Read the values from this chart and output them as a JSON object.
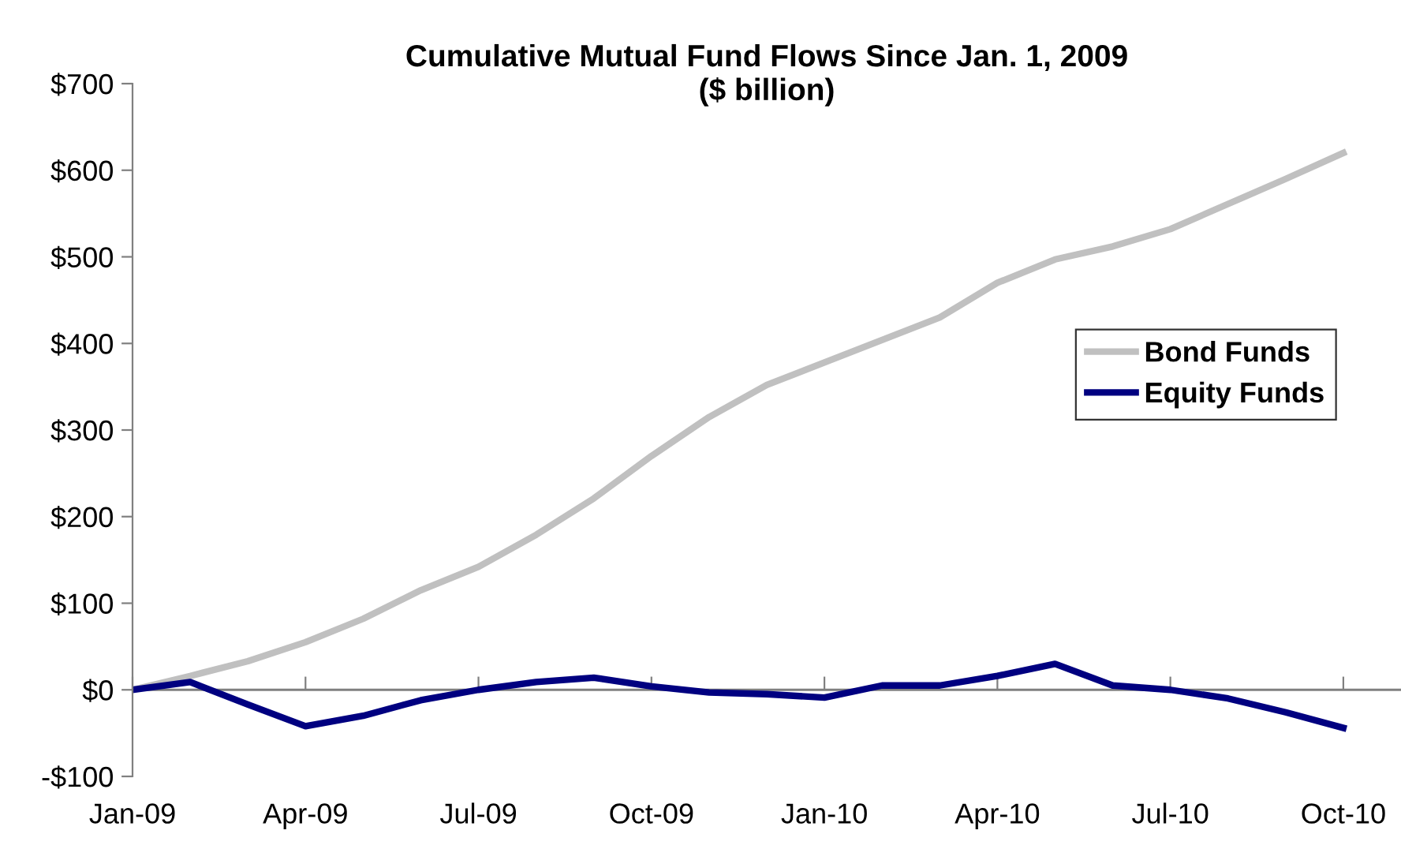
{
  "chart_data": {
    "type": "line",
    "title": "Cumulative Mutual Fund Flows Since Jan. 1, 2009\n($ billion)",
    "categories": [
      "Jan-09",
      null,
      null,
      "Apr-09",
      null,
      null,
      "Jul-09",
      null,
      null,
      "Oct-09",
      null,
      null,
      "Jan-10",
      null,
      null,
      "Apr-10",
      null,
      null,
      "Jul-10",
      null,
      null,
      "Oct-10"
    ],
    "series": [
      {
        "name": "Bond Funds",
        "color": "#c0c0c0",
        "values": [
          0,
          16,
          33,
          55,
          82,
          115,
          142,
          179,
          221,
          270,
          315,
          352,
          378,
          404,
          430,
          470,
          497,
          512,
          532,
          561,
          590,
          620
        ]
      },
      {
        "name": "Equity Funds",
        "color": "#000080",
        "values": [
          0,
          9,
          -17,
          -42,
          -30,
          -12,
          0,
          9,
          14,
          4,
          -3,
          -5,
          -9,
          5,
          5,
          16,
          30,
          5,
          0,
          -10,
          -26,
          -44
        ]
      }
    ],
    "ylim": [
      -100,
      700
    ],
    "yticks": [
      {
        "value": -100,
        "label": "-$100"
      },
      {
        "value": 0,
        "label": "$0"
      },
      {
        "value": 100,
        "label": "$100"
      },
      {
        "value": 200,
        "label": "$200"
      },
      {
        "value": 300,
        "label": "$300"
      },
      {
        "value": 400,
        "label": "$400"
      },
      {
        "value": 500,
        "label": "$500"
      },
      {
        "value": 600,
        "label": "$600"
      },
      {
        "value": 700,
        "label": "$700"
      }
    ],
    "ref_lines": [
      {
        "axis": "y",
        "value": 0,
        "color": "#808080"
      }
    ],
    "grid": false,
    "legend": "right",
    "marker": "none",
    "line_style": "solid"
  }
}
